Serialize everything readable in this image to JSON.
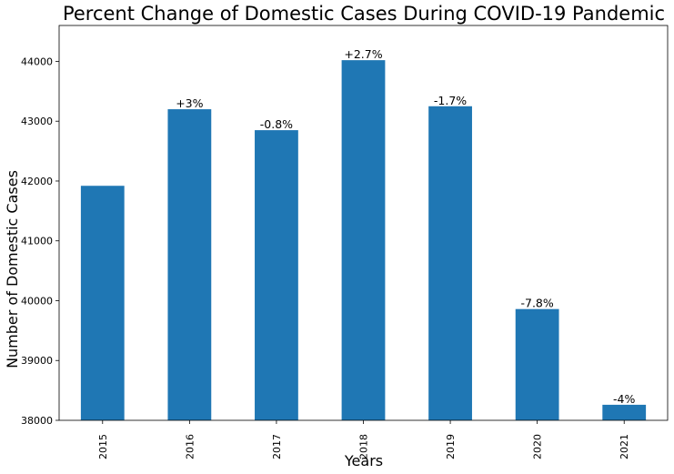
{
  "chart_data": {
    "type": "bar",
    "title": "Percent Change of Domestic Cases During COVID-19 Pandemic",
    "xlabel": "Years",
    "ylabel": "Number of Domestic Cases",
    "categories": [
      "2015",
      "2016",
      "2017",
      "2018",
      "2019",
      "2020",
      "2021"
    ],
    "values": [
      41920,
      43200,
      42850,
      44020,
      43250,
      39860,
      38260
    ],
    "data_labels": [
      "",
      "+3%",
      "-0.8%",
      "+2.7%",
      "-1.7%",
      "-7.8%",
      "-4%"
    ],
    "ylim": [
      38000,
      44600
    ],
    "yticks": [
      38000,
      39000,
      40000,
      41000,
      42000,
      43000,
      44000
    ],
    "bar_color": "#1f77b4",
    "grid": false,
    "legend": "none"
  }
}
